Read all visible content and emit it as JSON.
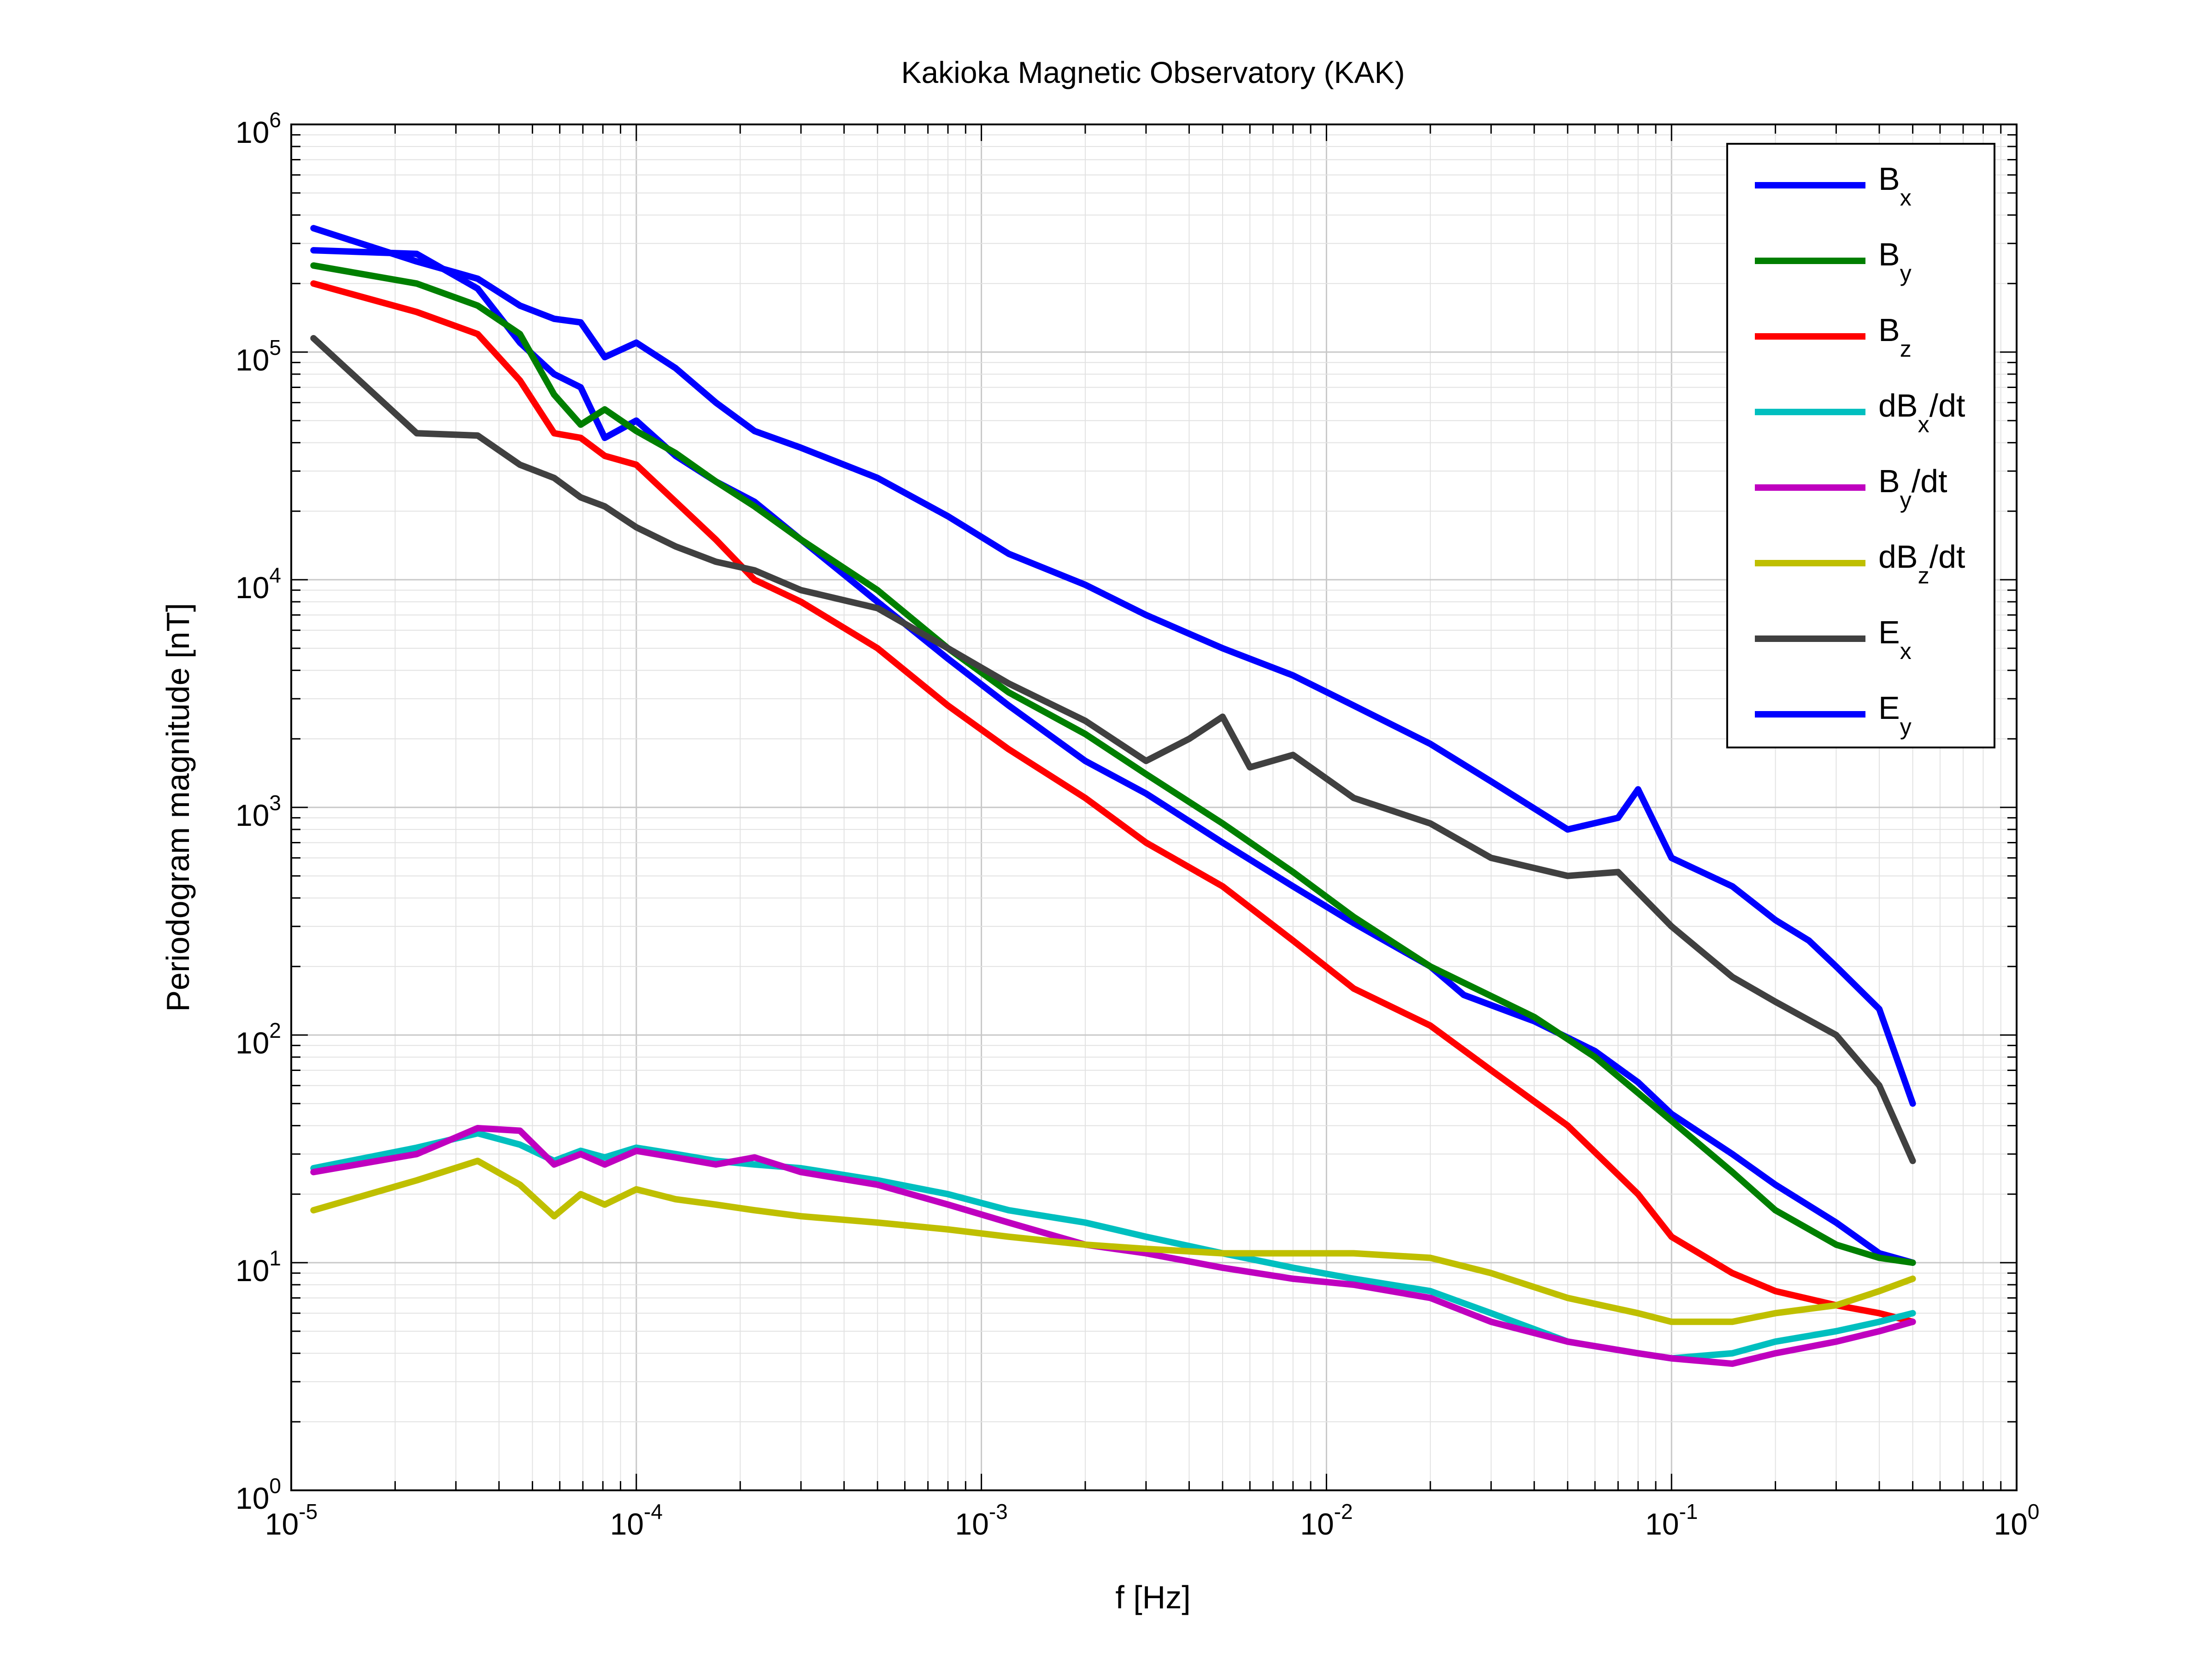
{
  "chart_data": {
    "type": "line",
    "title": "Kakioka Magnetic Observatory (KAK)",
    "xlabel": "f [Hz]",
    "ylabel": "Periodogram magnitude [nT]",
    "xscale": "log",
    "yscale": "log",
    "xlim": [
      1e-05,
      1
    ],
    "ylim": [
      1,
      1000000
    ],
    "grid": true,
    "legend_position": "top-right",
    "x_tick_labels": [
      {
        "base": "10",
        "exp": "-5"
      },
      {
        "base": "10",
        "exp": "-4"
      },
      {
        "base": "10",
        "exp": "-3"
      },
      {
        "base": "10",
        "exp": "-2"
      },
      {
        "base": "10",
        "exp": "-1"
      },
      {
        "base": "10",
        "exp": "0"
      }
    ],
    "y_tick_labels": [
      {
        "base": "10",
        "exp": "0"
      },
      {
        "base": "10",
        "exp": "1"
      },
      {
        "base": "10",
        "exp": "2"
      },
      {
        "base": "10",
        "exp": "3"
      },
      {
        "base": "10",
        "exp": "4"
      },
      {
        "base": "10",
        "exp": "5"
      },
      {
        "base": "10",
        "exp": "6"
      }
    ],
    "series": [
      {
        "name": "Bx",
        "legend_main": "B",
        "legend_sub": "x",
        "legend_suffix": "",
        "color": "#0000ff",
        "x": [
          1.16e-05,
          2.31e-05,
          3.47e-05,
          4.6e-05,
          5.78e-05,
          6.9e-05,
          8.1e-05,
          0.0001,
          0.00013,
          0.00017,
          0.00022,
          0.0003,
          0.0005,
          0.0008,
          0.0012,
          0.002,
          0.003,
          0.005,
          0.008,
          0.012,
          0.02,
          0.025,
          0.04,
          0.06,
          0.08,
          0.1,
          0.15,
          0.2,
          0.3,
          0.4,
          0.5
        ],
        "y": [
          280000,
          270000,
          190000,
          110000,
          80000,
          70000,
          42000,
          50000,
          35000,
          27000,
          22000,
          15000,
          8000,
          4500,
          2800,
          1600,
          1150,
          700,
          450,
          310,
          200,
          150,
          115,
          85,
          62,
          45,
          30,
          22,
          15,
          11,
          10
        ]
      },
      {
        "name": "By",
        "legend_main": "B",
        "legend_sub": "y",
        "legend_suffix": "",
        "color": "#007f00",
        "x": [
          1.16e-05,
          2.31e-05,
          3.47e-05,
          4.6e-05,
          5.78e-05,
          6.9e-05,
          8.1e-05,
          0.0001,
          0.00013,
          0.00017,
          0.00022,
          0.0003,
          0.0005,
          0.0008,
          0.0012,
          0.002,
          0.003,
          0.005,
          0.008,
          0.012,
          0.02,
          0.04,
          0.06,
          0.1,
          0.15,
          0.2,
          0.3,
          0.4,
          0.5
        ],
        "y": [
          240000,
          200000,
          160000,
          120000,
          65000,
          48000,
          56000,
          45000,
          36000,
          27000,
          21000,
          15000,
          9000,
          5000,
          3200,
          2100,
          1400,
          850,
          520,
          330,
          200,
          120,
          80,
          42,
          25,
          17,
          12,
          10.5,
          10
        ]
      },
      {
        "name": "Bz",
        "legend_main": "B",
        "legend_sub": "z",
        "legend_suffix": "",
        "color": "#ff0000",
        "x": [
          1.16e-05,
          2.31e-05,
          3.47e-05,
          4.6e-05,
          5.78e-05,
          6.9e-05,
          8.1e-05,
          0.0001,
          0.00013,
          0.00017,
          0.00022,
          0.0003,
          0.0005,
          0.0008,
          0.0012,
          0.002,
          0.003,
          0.005,
          0.008,
          0.012,
          0.02,
          0.03,
          0.05,
          0.08,
          0.1,
          0.15,
          0.2,
          0.3,
          0.4,
          0.5
        ],
        "y": [
          200000,
          150000,
          120000,
          75000,
          44000,
          42000,
          35000,
          32000,
          22000,
          15000,
          10000,
          8000,
          5000,
          2800,
          1800,
          1100,
          700,
          450,
          260,
          160,
          110,
          70,
          40,
          20,
          13,
          9,
          7.5,
          6.5,
          6,
          5.5
        ]
      },
      {
        "name": "dBx/dt",
        "legend_main": "dB",
        "legend_sub": "x",
        "legend_suffix": "/dt",
        "color": "#00bfbf",
        "x": [
          1.16e-05,
          2.31e-05,
          3.47e-05,
          4.6e-05,
          5.78e-05,
          6.9e-05,
          8.1e-05,
          0.0001,
          0.00013,
          0.00017,
          0.00022,
          0.0003,
          0.0005,
          0.0008,
          0.0012,
          0.002,
          0.003,
          0.005,
          0.008,
          0.012,
          0.02,
          0.03,
          0.05,
          0.08,
          0.1,
          0.15,
          0.2,
          0.3,
          0.4,
          0.5
        ],
        "y": [
          26,
          32,
          37,
          33,
          28,
          31,
          29,
          32,
          30,
          28,
          27,
          26,
          23,
          20,
          17,
          15,
          13,
          11,
          9.5,
          8.5,
          7.5,
          6,
          4.5,
          4,
          3.8,
          4,
          4.5,
          5,
          5.5,
          6
        ]
      },
      {
        "name": "By/dt",
        "legend_main": "B",
        "legend_sub": "y",
        "legend_suffix": "/dt",
        "color": "#bf00bf",
        "x": [
          1.16e-05,
          2.31e-05,
          3.47e-05,
          4.6e-05,
          5.78e-05,
          6.9e-05,
          8.1e-05,
          0.0001,
          0.00013,
          0.00017,
          0.00022,
          0.0003,
          0.0005,
          0.0008,
          0.0012,
          0.002,
          0.003,
          0.005,
          0.008,
          0.012,
          0.02,
          0.03,
          0.05,
          0.08,
          0.1,
          0.15,
          0.2,
          0.3,
          0.4,
          0.5
        ],
        "y": [
          25,
          30,
          39,
          38,
          27,
          30,
          27,
          31,
          29,
          27,
          29,
          25,
          22,
          18,
          15,
          12,
          11,
          9.5,
          8.5,
          8,
          7,
          5.5,
          4.5,
          4,
          3.8,
          3.6,
          4,
          4.5,
          5,
          5.5
        ]
      },
      {
        "name": "dBz/dt",
        "legend_main": "dB",
        "legend_sub": "z",
        "legend_suffix": "/dt",
        "color": "#bfbf00",
        "x": [
          1.16e-05,
          2.31e-05,
          3.47e-05,
          4.6e-05,
          5.78e-05,
          6.9e-05,
          8.1e-05,
          0.0001,
          0.00013,
          0.00017,
          0.00022,
          0.0003,
          0.0005,
          0.0008,
          0.0012,
          0.002,
          0.003,
          0.005,
          0.008,
          0.012,
          0.02,
          0.03,
          0.05,
          0.08,
          0.1,
          0.15,
          0.2,
          0.3,
          0.4,
          0.5
        ],
        "y": [
          17,
          23,
          28,
          22,
          16,
          20,
          18,
          21,
          19,
          18,
          17,
          16,
          15,
          14,
          13,
          12,
          11.5,
          11,
          11,
          11,
          10.5,
          9,
          7,
          6,
          5.5,
          5.5,
          6,
          6.5,
          7.5,
          8.5
        ]
      },
      {
        "name": "Ex",
        "legend_main": "E",
        "legend_sub": "x",
        "legend_suffix": "",
        "color": "#404040",
        "x": [
          1.16e-05,
          2.31e-05,
          3.47e-05,
          4.6e-05,
          5.78e-05,
          6.9e-05,
          8.1e-05,
          0.0001,
          0.00013,
          0.00017,
          0.00022,
          0.0003,
          0.0005,
          0.0008,
          0.0012,
          0.002,
          0.003,
          0.004,
          0.005,
          0.006,
          0.008,
          0.012,
          0.02,
          0.03,
          0.05,
          0.07,
          0.1,
          0.15,
          0.2,
          0.3,
          0.4,
          0.5
        ],
        "y": [
          115000,
          44000,
          43000,
          32000,
          28000,
          23000,
          21000,
          17000,
          14000,
          12000,
          11000,
          9000,
          7500,
          5000,
          3500,
          2400,
          1600,
          2000,
          2500,
          1500,
          1700,
          1100,
          850,
          600,
          500,
          520,
          300,
          180,
          140,
          100,
          60,
          28
        ]
      },
      {
        "name": "Ey",
        "legend_main": "E",
        "legend_sub": "y",
        "legend_suffix": "",
        "color": "#0000ff",
        "x": [
          1.16e-05,
          2.31e-05,
          3.47e-05,
          4.6e-05,
          5.78e-05,
          6.9e-05,
          8.1e-05,
          0.0001,
          0.00013,
          0.00017,
          0.00022,
          0.0003,
          0.0005,
          0.0008,
          0.0012,
          0.002,
          0.003,
          0.005,
          0.008,
          0.012,
          0.02,
          0.03,
          0.05,
          0.07,
          0.08,
          0.1,
          0.15,
          0.2,
          0.25,
          0.3,
          0.4,
          0.5
        ],
        "y": [
          350000,
          250000,
          210000,
          160000,
          140000,
          135000,
          95000,
          110000,
          85000,
          60000,
          45000,
          38000,
          28000,
          19000,
          13000,
          9500,
          7000,
          5000,
          3800,
          2800,
          1900,
          1300,
          800,
          900,
          1200,
          600,
          450,
          320,
          260,
          200,
          130,
          50
        ]
      }
    ]
  }
}
